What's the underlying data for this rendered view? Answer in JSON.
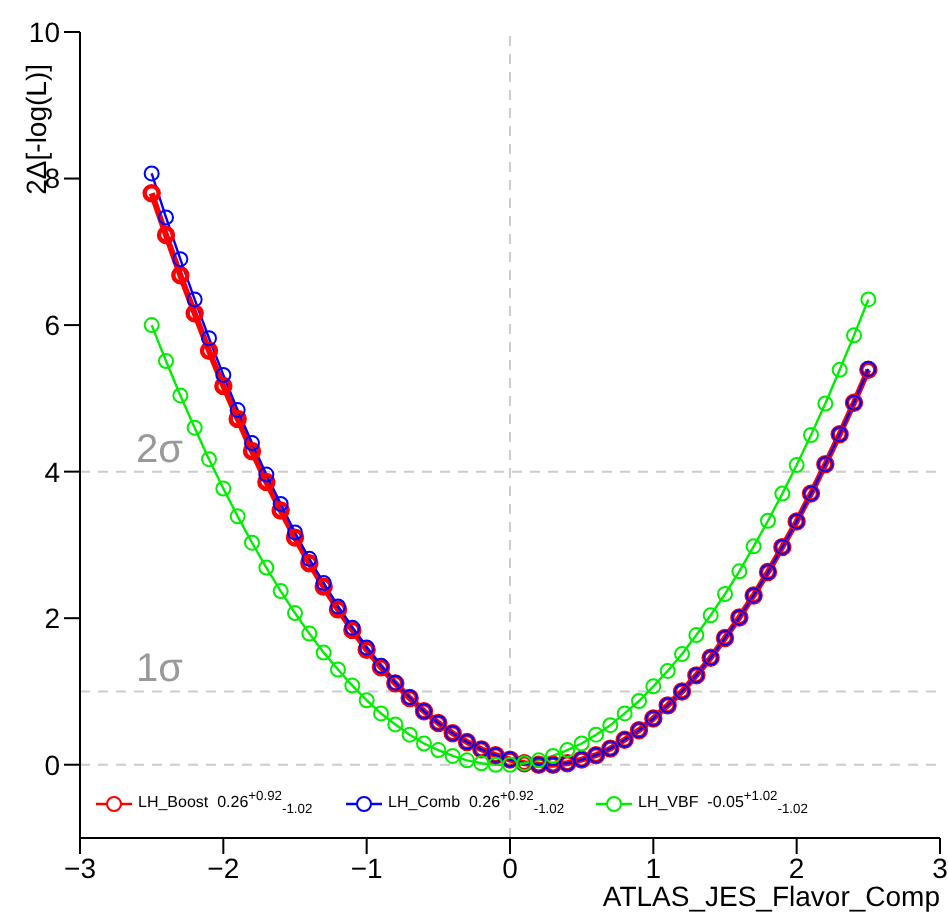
{
  "chart_data": {
    "type": "line",
    "xlabel": "ATLAS_JES_Flavor_Comp",
    "ylabel": "2Δ[-log(L)]",
    "x": [
      -2.5,
      -2.4,
      -2.3,
      -2.2,
      -2.1,
      -2.0,
      -1.9,
      -1.8,
      -1.7,
      -1.6,
      -1.5,
      -1.4,
      -1.3,
      -1.2,
      -1.1,
      -1.0,
      -0.9,
      -0.8,
      -0.7,
      -0.6,
      -0.5,
      -0.4,
      -0.3,
      -0.2,
      -0.1,
      0.0,
      0.1,
      0.2,
      0.3,
      0.4,
      0.5,
      0.6,
      0.7,
      0.8,
      0.9,
      1.0,
      1.1,
      1.2,
      1.3,
      1.4,
      1.5,
      1.6,
      1.7,
      1.8,
      1.9,
      2.0,
      2.1,
      2.2,
      2.3,
      2.4,
      2.5
    ],
    "series": [
      {
        "name": "LH_Boost  0.26$^{+0.92}$$_{-1.02}$",
        "color": "#ff0000",
        "values": [
          7.8,
          7.23,
          6.68,
          6.16,
          5.65,
          5.17,
          4.72,
          4.28,
          3.86,
          3.47,
          3.1,
          2.75,
          2.43,
          2.12,
          1.84,
          1.57,
          1.33,
          1.11,
          0.91,
          0.73,
          0.57,
          0.43,
          0.31,
          0.21,
          0.13,
          0.07,
          0.02,
          0.0,
          0.0,
          0.02,
          0.07,
          0.13,
          0.22,
          0.34,
          0.47,
          0.63,
          0.81,
          1.0,
          1.22,
          1.46,
          1.73,
          2.01,
          2.31,
          2.63,
          2.97,
          3.32,
          3.7,
          4.1,
          4.51,
          4.94,
          5.39
        ]
      },
      {
        "name": "LH_Comb  0.26$^{+0.92}$$_{-1.02}$",
        "color": "#0000ff",
        "values": [
          8.07,
          7.47,
          6.9,
          6.35,
          5.82,
          5.32,
          4.84,
          4.39,
          3.96,
          3.56,
          3.17,
          2.81,
          2.48,
          2.16,
          1.87,
          1.6,
          1.35,
          1.12,
          0.92,
          0.73,
          0.57,
          0.43,
          0.31,
          0.21,
          0.13,
          0.07,
          0.02,
          0.0,
          0.0,
          0.02,
          0.07,
          0.13,
          0.22,
          0.34,
          0.47,
          0.63,
          0.81,
          1.0,
          1.22,
          1.46,
          1.73,
          2.01,
          2.31,
          2.63,
          2.97,
          3.32,
          3.7,
          4.1,
          4.51,
          4.94,
          5.4
        ]
      },
      {
        "name": "LH_VBF  -0.05$^{+1.02}$$_{-1.02}$",
        "color": "#00ee00",
        "values": [
          6.0,
          5.51,
          5.04,
          4.6,
          4.17,
          3.77,
          3.39,
          3.03,
          2.69,
          2.37,
          2.07,
          1.79,
          1.53,
          1.3,
          1.08,
          0.88,
          0.7,
          0.55,
          0.41,
          0.29,
          0.2,
          0.12,
          0.06,
          0.02,
          0.0,
          0.0,
          0.02,
          0.06,
          0.12,
          0.2,
          0.29,
          0.41,
          0.54,
          0.7,
          0.87,
          1.07,
          1.28,
          1.51,
          1.77,
          2.04,
          2.33,
          2.64,
          2.98,
          3.33,
          3.7,
          4.09,
          4.5,
          4.93,
          5.39,
          5.86,
          6.35
        ]
      }
    ],
    "xlim": [
      -3,
      3
    ],
    "xticks": [
      -3,
      -2,
      -1,
      0,
      1,
      2,
      3
    ],
    "ylim": [
      -1,
      10
    ],
    "yticks": [
      0,
      2,
      4,
      6,
      8,
      10
    ],
    "ref_lines": [
      {
        "axis": "y",
        "value": 1,
        "label": "1σ",
        "color": "#cccccc",
        "line_style": "dashed"
      },
      {
        "axis": "y",
        "value": 4,
        "label": "2σ",
        "color": "#cccccc",
        "line_style": "dashed"
      },
      {
        "axis": "y",
        "value": 0,
        "label": null,
        "color": "#cccccc",
        "line_style": "dashed"
      },
      {
        "axis": "x",
        "value": 0,
        "label": null,
        "color": "#cccccc",
        "line_style": "dashed"
      }
    ],
    "grid": false,
    "legend": "bottom",
    "marker": "circle",
    "line_style": "solid"
  }
}
